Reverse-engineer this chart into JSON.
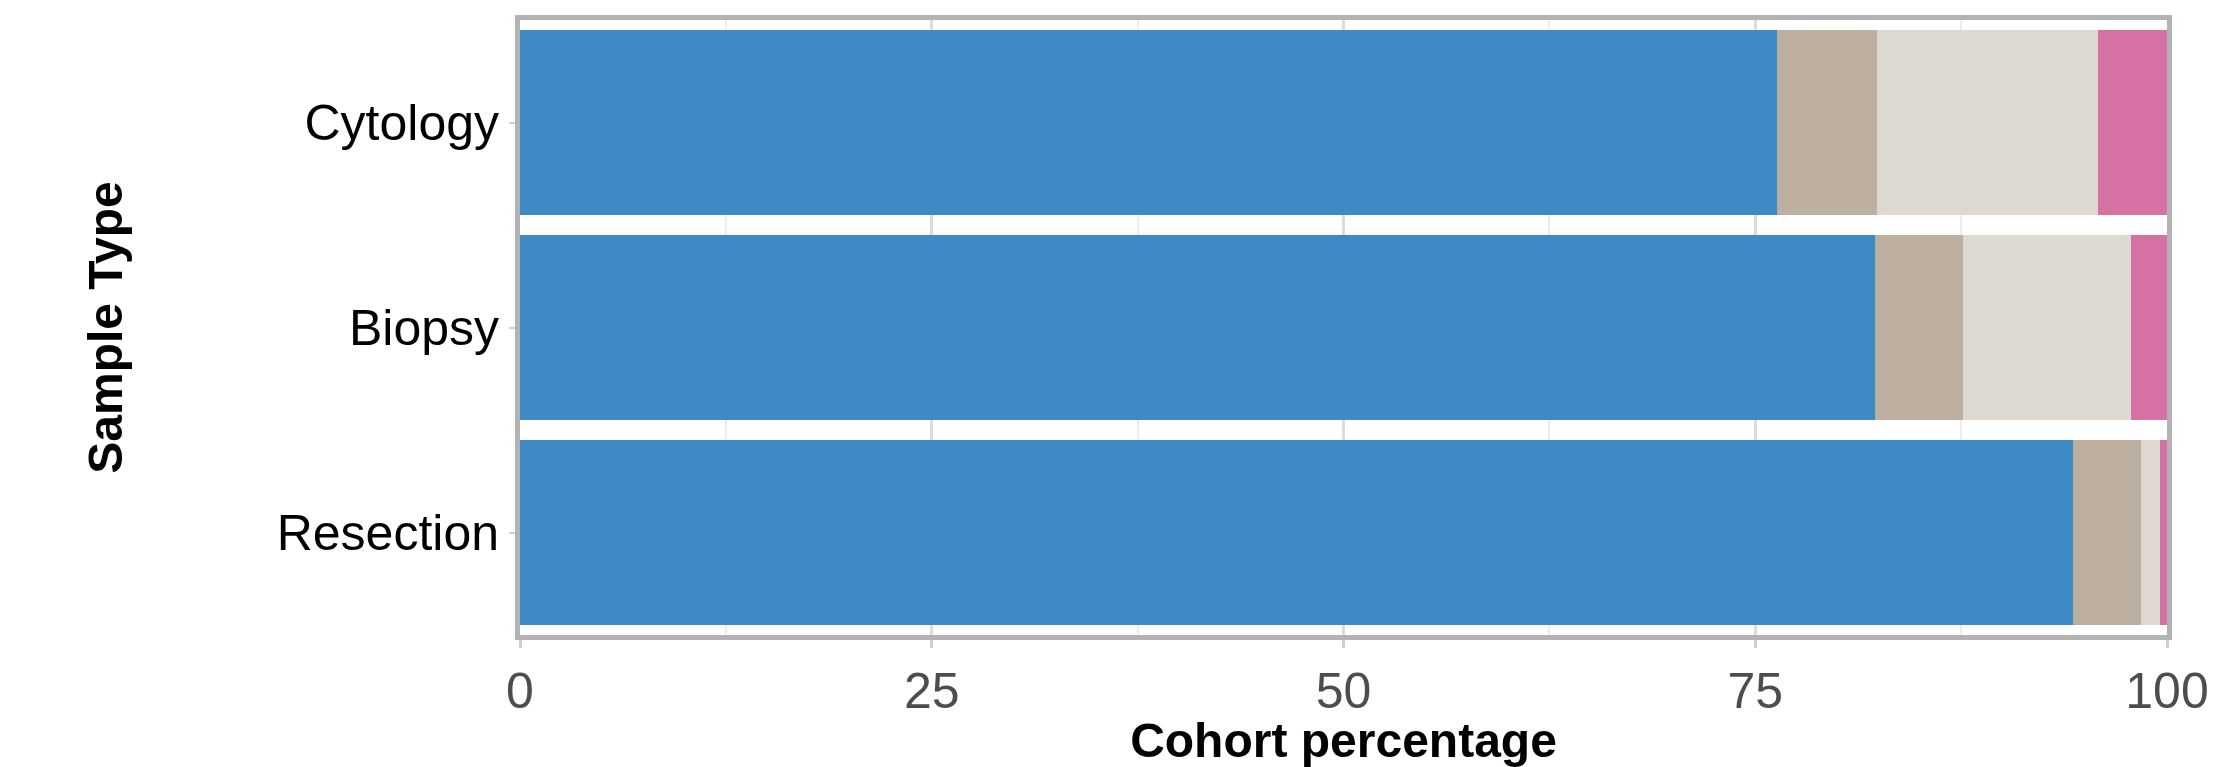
{
  "chart_data": {
    "type": "bar",
    "orientation": "horizontal",
    "stacked": true,
    "xlabel": "Cohort percentage",
    "ylabel": "Sample Type",
    "categories": [
      "Cytology",
      "Biopsy",
      "Resection"
    ],
    "series": [
      {
        "color": "#3d8ac5",
        "values": [
          76.3,
          82.3,
          94.3
        ]
      },
      {
        "color": "#bdb0a0",
        "values": [
          6.1,
          5.3,
          4.1
        ]
      },
      {
        "color": "#ddd8d0",
        "values": [
          13.4,
          10.2,
          1.2
        ]
      },
      {
        "color": "#d572a3",
        "values": [
          4.2,
          2.2,
          0.4
        ]
      }
    ],
    "xlim": [
      0,
      100
    ],
    "xticks": [
      0,
      25,
      50,
      75,
      100
    ],
    "grid": "x"
  }
}
